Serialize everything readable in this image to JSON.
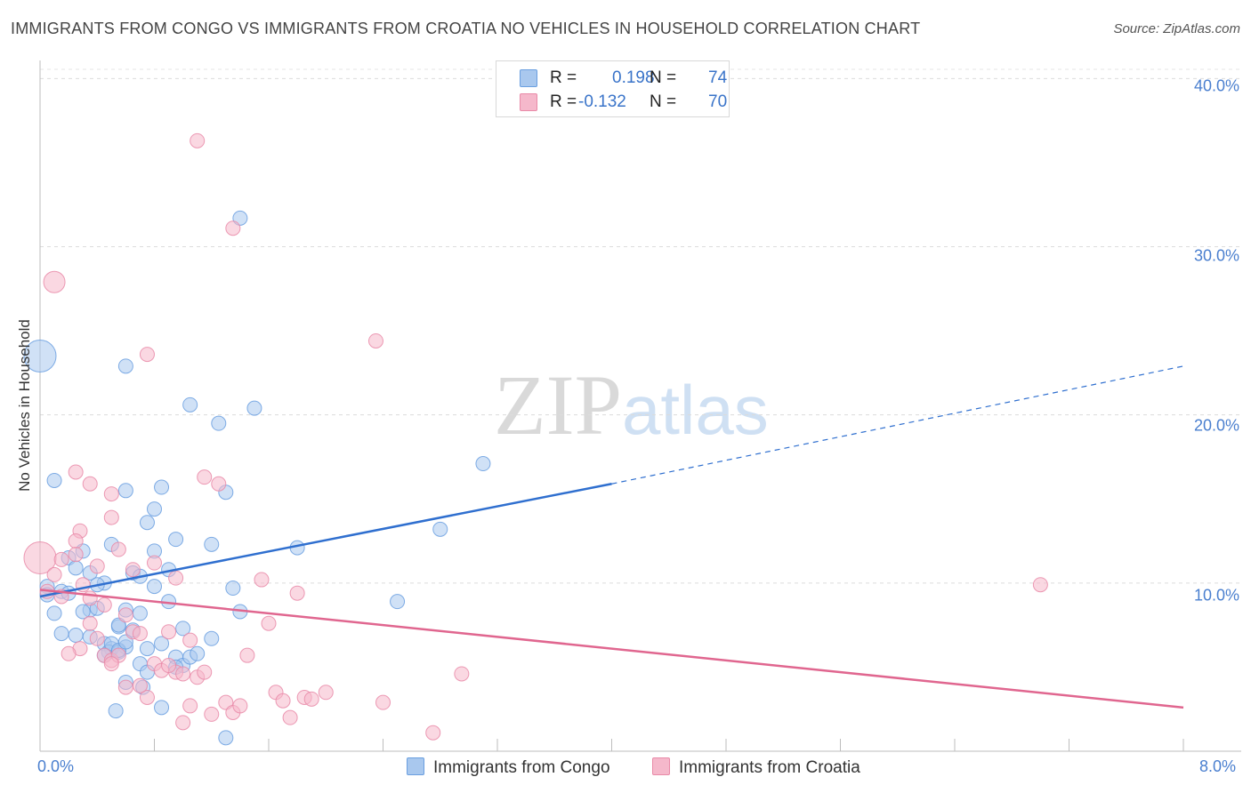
{
  "title": "IMMIGRANTS FROM CONGO VS IMMIGRANTS FROM CROATIA NO VEHICLES IN HOUSEHOLD CORRELATION CHART",
  "source": "Source: ZipAtlas.com",
  "watermark": {
    "zip": "ZIP",
    "atlas": "atlas"
  },
  "legend": {
    "rows": [
      {
        "r_label": "R =",
        "r_value": "0.198",
        "n_label": "N =",
        "n_value": "74",
        "color": "#a9c8ee"
      },
      {
        "r_label": "R =",
        "r_value": "-0.132",
        "n_label": "N =",
        "n_value": "70",
        "color": "#f5b8cb"
      }
    ]
  },
  "bottom_legend": [
    {
      "label": "Immigrants from Congo",
      "color": "#a9c8ee"
    },
    {
      "label": "Immigrants from Croatia",
      "color": "#f5b8cb"
    }
  ],
  "chart_data": {
    "type": "scatter",
    "title": "IMMIGRANTS FROM CONGO VS IMMIGRANTS FROM CROATIA NO VEHICLES IN HOUSEHOLD CORRELATION CHART",
    "xlabel": "",
    "ylabel": "No Vehicles in Household",
    "xlim": [
      0,
      8
    ],
    "ylim": [
      0,
      41.5
    ],
    "x_tick_labels": [
      "0.0%",
      "8.0%"
    ],
    "y_ticks": [
      10,
      20,
      30,
      40
    ],
    "y_tick_labels": [
      "10.0%",
      "20.0%",
      "30.0%",
      "40.0%"
    ],
    "grid": true,
    "legend_position": "top-center",
    "series": [
      {
        "name": "Immigrants from Congo",
        "color": "#6a9fe0",
        "fill": "#a9c8ee",
        "r": 0.198,
        "n": 74,
        "trend": {
          "x0": 0.0,
          "y0": 9.2,
          "x1": 4.0,
          "y1": 15.9,
          "dash_to_x": 8.0,
          "dash_to_y": 22.9
        },
        "points": [
          [
            0.0,
            23.5,
            3
          ],
          [
            0.1,
            16.1,
            1
          ],
          [
            0.6,
            22.9,
            1
          ],
          [
            1.05,
            20.6,
            1
          ],
          [
            1.25,
            19.5,
            1
          ],
          [
            1.5,
            20.4,
            1
          ],
          [
            1.4,
            31.7,
            1
          ],
          [
            3.1,
            17.1,
            1
          ],
          [
            2.8,
            13.2,
            1
          ],
          [
            2.5,
            8.9,
            1
          ],
          [
            1.8,
            12.1,
            1
          ],
          [
            0.05,
            9.8,
            1
          ],
          [
            0.05,
            9.3,
            1
          ],
          [
            0.15,
            9.5,
            1
          ],
          [
            0.1,
            8.2,
            1
          ],
          [
            0.15,
            7.0,
            1
          ],
          [
            0.2,
            11.5,
            1
          ],
          [
            0.25,
            10.9,
            1
          ],
          [
            0.35,
            10.6,
            1
          ],
          [
            0.3,
            11.9,
            1
          ],
          [
            0.45,
            10.0,
            1
          ],
          [
            0.5,
            12.3,
            1
          ],
          [
            0.4,
            9.9,
            1
          ],
          [
            0.35,
            8.4,
            1
          ],
          [
            0.3,
            8.3,
            1
          ],
          [
            0.25,
            6.9,
            1
          ],
          [
            0.35,
            6.8,
            1
          ],
          [
            0.45,
            6.4,
            1
          ],
          [
            0.5,
            6.1,
            1
          ],
          [
            0.48,
            5.9,
            1
          ],
          [
            0.55,
            7.4,
            1
          ],
          [
            0.6,
            8.4,
            1
          ],
          [
            0.65,
            10.6,
            1
          ],
          [
            0.7,
            10.4,
            1
          ],
          [
            0.75,
            13.6,
            1
          ],
          [
            0.8,
            14.4,
            1
          ],
          [
            0.85,
            15.7,
            1
          ],
          [
            0.8,
            11.9,
            1
          ],
          [
            0.9,
            10.8,
            1
          ],
          [
            0.95,
            12.6,
            1
          ],
          [
            1.2,
            12.3,
            1
          ],
          [
            1.3,
            15.4,
            1
          ],
          [
            0.6,
            15.5,
            1
          ],
          [
            0.7,
            8.2,
            1
          ],
          [
            0.65,
            7.2,
            1
          ],
          [
            0.75,
            6.1,
            1
          ],
          [
            0.7,
            5.2,
            1
          ],
          [
            0.75,
            4.7,
            1
          ],
          [
            0.6,
            4.1,
            1
          ],
          [
            0.72,
            3.8,
            1
          ],
          [
            0.5,
            6.4,
            1
          ],
          [
            0.8,
            9.8,
            1
          ],
          [
            0.9,
            8.9,
            1
          ],
          [
            0.85,
            6.4,
            1
          ],
          [
            0.95,
            5.6,
            1
          ],
          [
            1.0,
            5.1,
            1
          ],
          [
            1.05,
            5.6,
            1
          ],
          [
            1.0,
            7.3,
            1
          ],
          [
            1.2,
            6.7,
            1
          ],
          [
            1.35,
            9.7,
            1
          ],
          [
            1.4,
            8.3,
            1
          ],
          [
            1.1,
            5.8,
            1
          ],
          [
            0.95,
            5.0,
            1
          ],
          [
            0.6,
            6.2,
            1
          ],
          [
            0.55,
            5.9,
            1
          ],
          [
            0.53,
            2.4,
            1
          ],
          [
            0.85,
            2.6,
            1
          ],
          [
            1.3,
            0.8,
            1
          ],
          [
            0.55,
            6.0,
            1
          ],
          [
            0.45,
            5.7,
            1
          ],
          [
            0.6,
            6.5,
            1
          ],
          [
            0.4,
            8.5,
            1
          ],
          [
            0.55,
            7.5,
            1
          ],
          [
            0.2,
            9.4,
            1
          ]
        ]
      },
      {
        "name": "Immigrants from Croatia",
        "color": "#e98aa8",
        "fill": "#f5b8cb",
        "r": -0.132,
        "n": 70,
        "trend": {
          "x0": 0.0,
          "y0": 9.6,
          "x1": 8.0,
          "y1": 2.6
        },
        "points": [
          [
            0.0,
            11.5,
            3
          ],
          [
            0.1,
            27.9,
            2
          ],
          [
            1.1,
            36.3,
            1
          ],
          [
            1.35,
            31.1,
            1
          ],
          [
            0.75,
            23.6,
            1
          ],
          [
            2.35,
            24.4,
            1
          ],
          [
            0.25,
            16.6,
            1
          ],
          [
            0.35,
            15.9,
            1
          ],
          [
            0.5,
            15.3,
            1
          ],
          [
            0.5,
            13.9,
            1
          ],
          [
            0.28,
            13.1,
            1
          ],
          [
            0.25,
            12.5,
            1
          ],
          [
            0.55,
            12.0,
            1
          ],
          [
            0.65,
            10.8,
            1
          ],
          [
            0.8,
            11.2,
            1
          ],
          [
            0.95,
            10.3,
            1
          ],
          [
            0.15,
            11.4,
            1
          ],
          [
            0.1,
            10.5,
            1
          ],
          [
            0.05,
            9.5,
            1
          ],
          [
            0.15,
            9.2,
            1
          ],
          [
            0.35,
            9.1,
            1
          ],
          [
            0.45,
            8.7,
            1
          ],
          [
            0.6,
            8.1,
            1
          ],
          [
            0.65,
            7.1,
            1
          ],
          [
            0.7,
            7.0,
            1
          ],
          [
            0.9,
            7.1,
            1
          ],
          [
            0.35,
            7.6,
            1
          ],
          [
            0.28,
            6.1,
            1
          ],
          [
            0.2,
            5.8,
            1
          ],
          [
            0.45,
            5.7,
            1
          ],
          [
            0.5,
            5.4,
            1
          ],
          [
            0.55,
            5.7,
            1
          ],
          [
            0.8,
            5.2,
            1
          ],
          [
            0.85,
            4.8,
            1
          ],
          [
            0.95,
            4.7,
            1
          ],
          [
            1.0,
            4.6,
            1
          ],
          [
            1.1,
            4.4,
            1
          ],
          [
            1.15,
            4.7,
            1
          ],
          [
            1.05,
            6.6,
            1
          ],
          [
            0.6,
            3.8,
            1
          ],
          [
            0.75,
            3.2,
            1
          ],
          [
            1.05,
            2.7,
            1
          ],
          [
            1.2,
            2.2,
            1
          ],
          [
            1.0,
            1.7,
            1
          ],
          [
            1.3,
            2.9,
            1
          ],
          [
            1.35,
            2.3,
            1
          ],
          [
            1.4,
            2.7,
            1
          ],
          [
            1.45,
            5.7,
            1
          ],
          [
            1.55,
            10.2,
            1
          ],
          [
            1.6,
            7.6,
            1
          ],
          [
            1.65,
            3.5,
            1
          ],
          [
            1.7,
            3.0,
            1
          ],
          [
            1.75,
            2.0,
            1
          ],
          [
            1.8,
            9.4,
            1
          ],
          [
            1.85,
            3.2,
            1
          ],
          [
            1.9,
            3.1,
            1
          ],
          [
            2.0,
            3.5,
            1
          ],
          [
            2.4,
            2.9,
            1
          ],
          [
            2.75,
            1.1,
            1
          ],
          [
            2.95,
            4.6,
            1
          ],
          [
            7.0,
            9.9,
            1
          ],
          [
            1.15,
            16.3,
            1
          ],
          [
            1.25,
            15.9,
            1
          ],
          [
            0.4,
            11.0,
            1
          ],
          [
            0.3,
            9.9,
            1
          ],
          [
            0.25,
            11.7,
            1
          ],
          [
            0.4,
            6.7,
            1
          ],
          [
            0.5,
            5.2,
            1
          ],
          [
            0.7,
            3.9,
            1
          ],
          [
            0.9,
            5.1,
            1
          ]
        ]
      }
    ]
  }
}
